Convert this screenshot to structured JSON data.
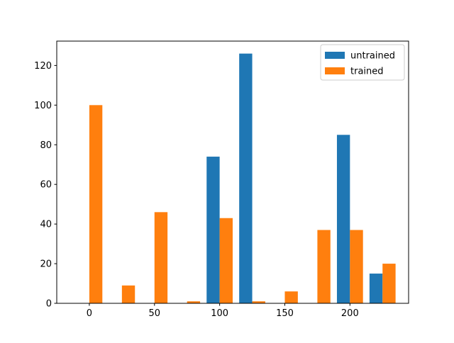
{
  "chart_data": {
    "type": "bar",
    "title": "",
    "xlabel": "",
    "ylabel": "",
    "xlim": [
      -25,
      245
    ],
    "ylim": [
      0,
      132.3
    ],
    "xticks": [
      0,
      50,
      100,
      150,
      200
    ],
    "yticks": [
      0,
      20,
      40,
      60,
      80,
      100,
      120
    ],
    "bar_width": 10,
    "legend_position": "top-right",
    "x_centers": [
      0,
      25,
      50,
      75,
      100,
      125,
      150,
      175,
      200,
      225
    ],
    "series": [
      {
        "name": "untrained",
        "color": "#1f77b4",
        "offset": -5,
        "values": [
          0,
          0,
          0,
          0,
          74,
          126,
          0,
          0,
          85,
          15
        ]
      },
      {
        "name": "trained",
        "color": "#ff7f0e",
        "offset": 5,
        "values": [
          100,
          9,
          46,
          1,
          43,
          1,
          6,
          37,
          37,
          20
        ]
      }
    ]
  }
}
